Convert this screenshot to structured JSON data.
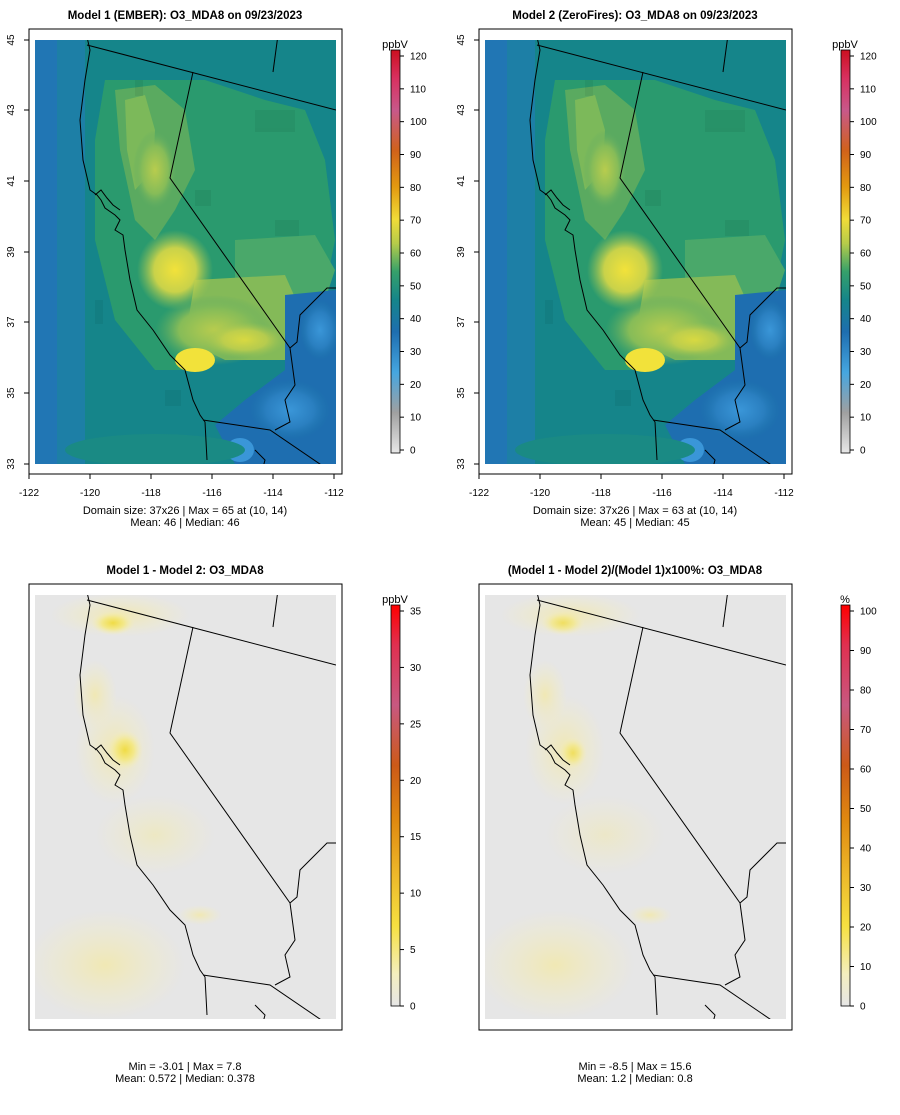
{
  "panels": [
    {
      "id": "m1",
      "title": "Model 1 (EMBER): O3_MDA8 on 09/23/2023",
      "unit": "ppbV",
      "colorbar_ticks": [
        "0",
        "10",
        "20",
        "30",
        "40",
        "50",
        "60",
        "70",
        "80",
        "90",
        "100",
        "110",
        "120"
      ],
      "stat_line1": "Domain size: 37x26 | Max = 65 at (10, 14)",
      "stat_line2": "Mean: 46 |  Median: 46",
      "x_ticks": [
        "-122",
        "-120",
        "-118",
        "-116",
        "-114",
        "-112"
      ],
      "y_ticks": [
        "33",
        "35",
        "37",
        "39",
        "41",
        "43",
        "45"
      ]
    },
    {
      "id": "m2",
      "title": "Model 2 (ZeroFires): O3_MDA8 on 09/23/2023",
      "unit": "ppbV",
      "colorbar_ticks": [
        "0",
        "10",
        "20",
        "30",
        "40",
        "50",
        "60",
        "70",
        "80",
        "90",
        "100",
        "110",
        "120"
      ],
      "stat_line1": "Domain size: 37x26 | Max = 63 at (10, 14)",
      "stat_line2": "Mean: 45 |  Median: 45",
      "x_ticks": [
        "-122",
        "-120",
        "-118",
        "-116",
        "-114",
        "-112"
      ],
      "y_ticks": [
        "33",
        "35",
        "37",
        "39",
        "41",
        "43",
        "45"
      ]
    },
    {
      "id": "diff",
      "title": "Model 1 - Model 2: O3_MDA8",
      "unit": "ppbV",
      "colorbar_ticks": [
        "0",
        "5",
        "10",
        "15",
        "20",
        "25",
        "30",
        "35"
      ],
      "stat_line1": "Min = -3.01 | Max = 7.8",
      "stat_line2": "Mean: 0.572 |  Median: 0.378"
    },
    {
      "id": "pct",
      "title": "(Model 1 - Model 2)/(Model 1)x100%: O3_MDA8",
      "unit": "%",
      "colorbar_ticks": [
        "0",
        "10",
        "20",
        "30",
        "40",
        "50",
        "60",
        "70",
        "80",
        "90",
        "100"
      ],
      "stat_line1": "Min = -8.5 | Max = 15.6",
      "stat_line2": "Mean: 1.2 |  Median: 0.8"
    }
  ],
  "colors": {
    "ozone_scale": [
      "#e0e0e0",
      "#9a9a9a",
      "#3aa0dc",
      "#1e72b4",
      "#1a8a84",
      "#2a9a6e",
      "#a8c84c",
      "#f0dc38",
      "#e39a10",
      "#d0621a",
      "#c8588a",
      "#d03060",
      "#cc1020"
    ],
    "diff_scale": [
      "#e6e6e6",
      "#f4eebe",
      "#f6e040",
      "#ecb428",
      "#e08a10",
      "#cc5a18",
      "#c85880",
      "#e03050",
      "#ff0000"
    ],
    "no_change": "#e6e6e6",
    "frame": "#000000"
  }
}
